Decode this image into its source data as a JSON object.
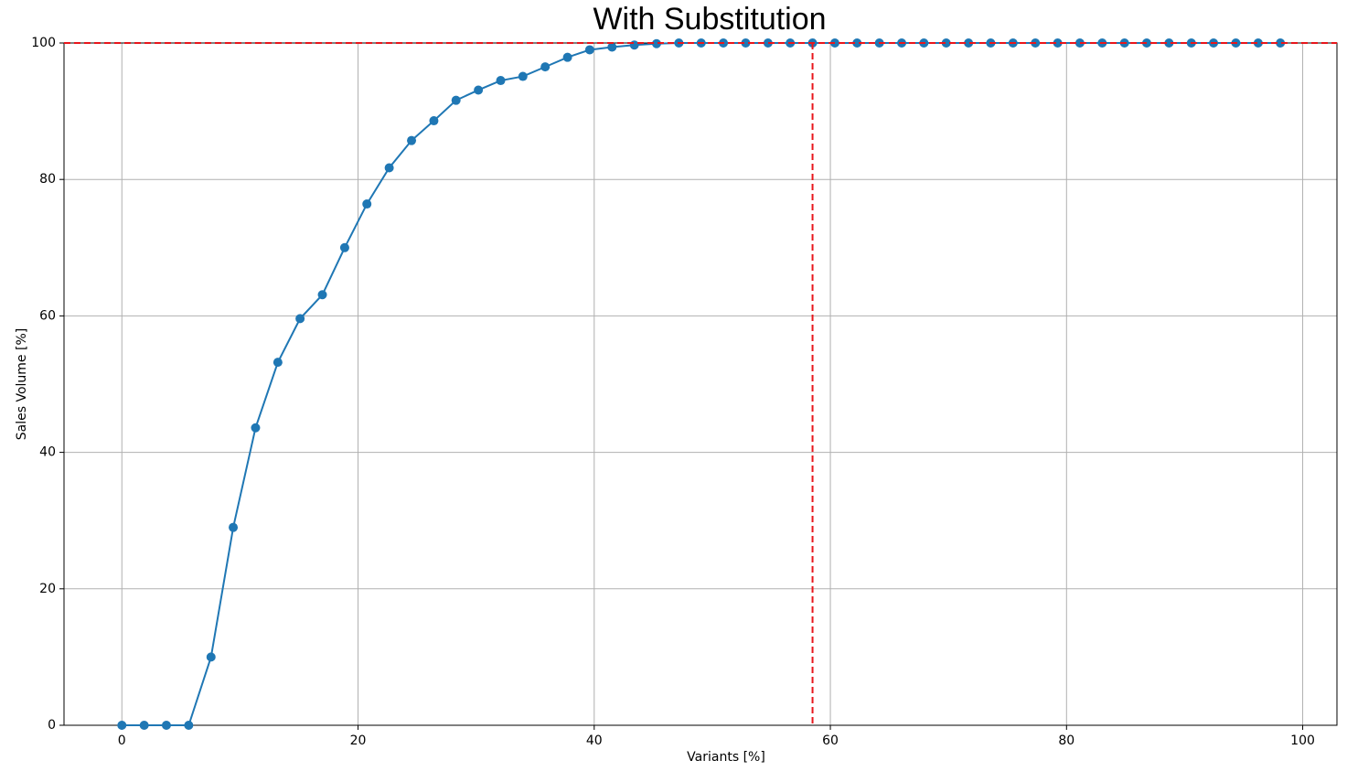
{
  "chart_data": {
    "type": "line",
    "title": "With Substitution",
    "x_label": "Variants [%]",
    "y_label": "Sales Volume [%]",
    "x": [
      0,
      1.89,
      3.77,
      5.66,
      7.55,
      9.43,
      11.32,
      13.21,
      15.09,
      16.98,
      18.87,
      20.75,
      22.64,
      24.53,
      26.42,
      28.3,
      30.19,
      32.08,
      33.96,
      35.85,
      37.74,
      39.62,
      41.51,
      43.4,
      45.28,
      47.17,
      49.06,
      50.94,
      52.83,
      54.72,
      56.6,
      58.49,
      60.38,
      62.26,
      64.15,
      66.04,
      67.92,
      69.81,
      71.7,
      73.58,
      75.47,
      77.36,
      79.25,
      81.13,
      83.02,
      84.91,
      86.79,
      88.68,
      90.57,
      92.45,
      94.34,
      96.23,
      98.11
    ],
    "series": [
      {
        "name": "Sales Volume",
        "color": "#1f77b4",
        "values": [
          0,
          0,
          0,
          0,
          10,
          29,
          43.6,
          53.2,
          59.6,
          63.1,
          70,
          76.4,
          81.7,
          85.7,
          88.6,
          91.6,
          93.1,
          94.5,
          95.1,
          96.5,
          97.9,
          99,
          99.4,
          99.7,
          99.9,
          100,
          100,
          100,
          100,
          100,
          100,
          100,
          100,
          100,
          100,
          100,
          100,
          100,
          100,
          100,
          100,
          100,
          100,
          100,
          100,
          100,
          100,
          100,
          100,
          100,
          100,
          100,
          100
        ]
      }
    ],
    "reference_lines": {
      "x": 58.49,
      "y": 100,
      "color": "#e8161b"
    },
    "xlim": [
      -4.9,
      102.9
    ],
    "xticks": [
      0,
      20,
      40,
      60,
      80,
      100
    ],
    "ylim": [
      0,
      100
    ],
    "yticks": [
      0,
      20,
      40,
      60,
      80,
      100
    ],
    "grid": true
  }
}
